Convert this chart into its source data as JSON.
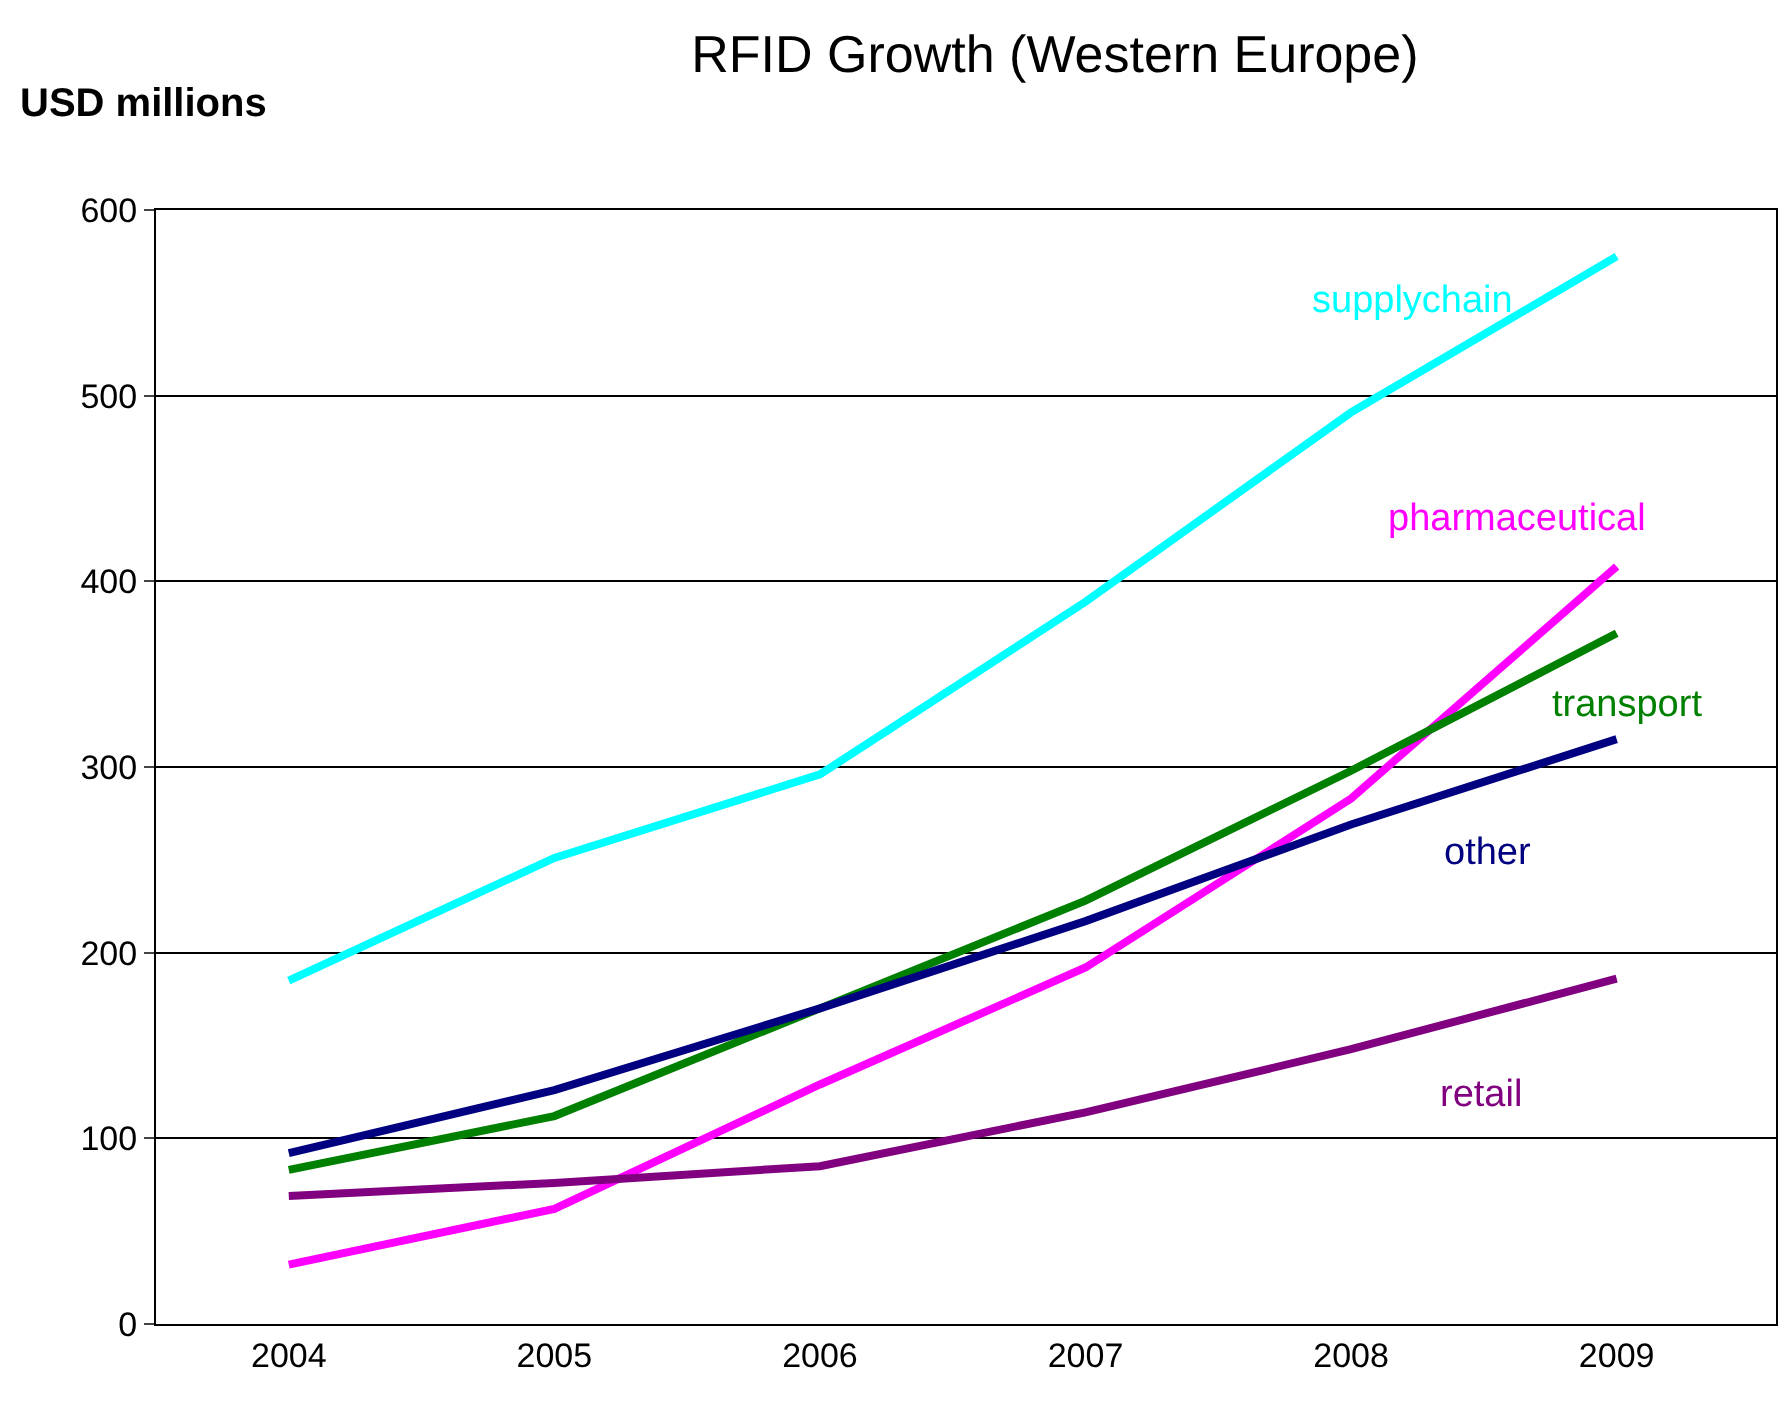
{
  "chart_data": {
    "type": "line",
    "title": "RFID Growth (Western Europe)",
    "ylabel": "USD millions",
    "categories": [
      "2004",
      "2005",
      "2006",
      "2007",
      "2008",
      "2009"
    ],
    "series": [
      {
        "name": "supplychain",
        "color": "#00ffff",
        "values": [
          185,
          251,
          296,
          389,
          491,
          575
        ]
      },
      {
        "name": "pharmaceutical",
        "color": "#ff00ff",
        "values": [
          32,
          62,
          129,
          192,
          283,
          408
        ]
      },
      {
        "name": "transport",
        "color": "#008000",
        "values": [
          83,
          112,
          170,
          228,
          298,
          372
        ]
      },
      {
        "name": "other",
        "color": "#000080",
        "values": [
          92,
          126,
          170,
          217,
          269,
          315
        ]
      },
      {
        "name": "retail",
        "color": "#800080",
        "values": [
          69,
          76,
          85,
          114,
          148,
          186
        ]
      }
    ],
    "ylim": [
      0,
      600
    ],
    "yticks": [
      0,
      100,
      200,
      300,
      400,
      500,
      600
    ],
    "grid": "y",
    "legend": false,
    "marker": "none",
    "line_style": "solid"
  }
}
